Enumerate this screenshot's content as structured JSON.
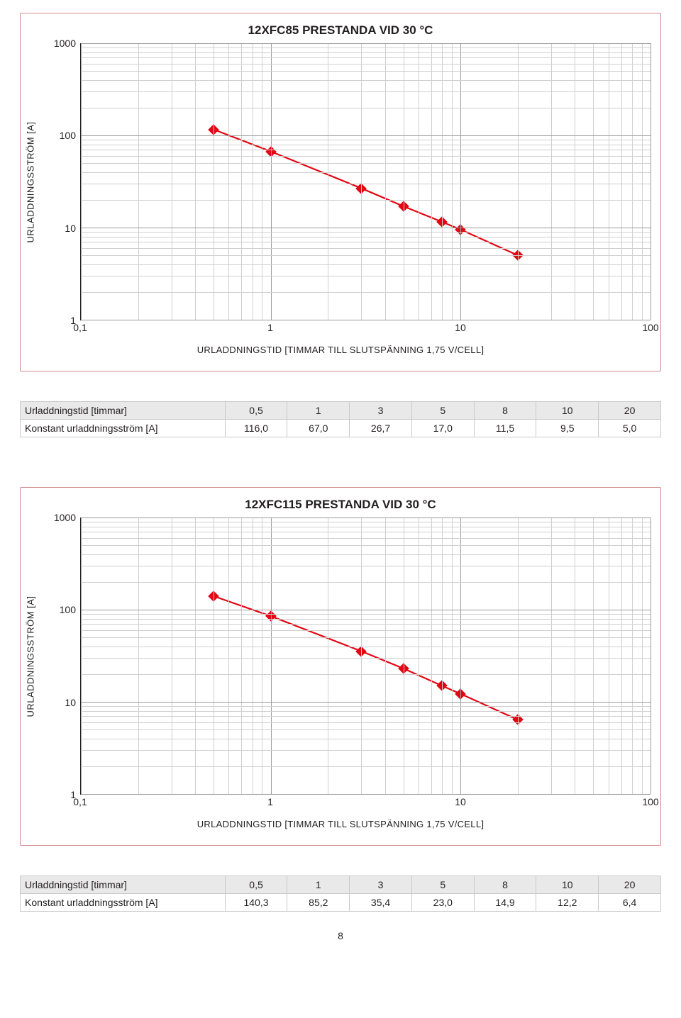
{
  "page_number": "8",
  "panel_border_color": "#d08a8a",
  "line_color": "#e30613",
  "grid_major_color": "#9b9b9b",
  "grid_minor_color": "#cfcfcf",
  "axis_color": "#231f20",
  "background_color": "#ffffff",
  "ylabel": "URLADDNINGSSTRÖM [A]",
  "xlabel": "URLADDNINGSTID [TIMMAR TILL SLUTSPÄNNING 1,75 V/CELL]",
  "yticks": [
    "1000",
    "100",
    "10",
    "1"
  ],
  "xticks": [
    "0,1",
    "1",
    "10",
    "100"
  ],
  "charts": [
    {
      "title": "12XFC85 PRESTANDA VID 30 °C",
      "type": "line-loglog",
      "xlim_log10": [
        -1,
        2
      ],
      "ylim_log10": [
        0,
        3
      ],
      "points": [
        {
          "x": 0.5,
          "y": 116.0
        },
        {
          "x": 1,
          "y": 67.0
        },
        {
          "x": 3,
          "y": 26.7
        },
        {
          "x": 5,
          "y": 17.0
        },
        {
          "x": 8,
          "y": 11.5
        },
        {
          "x": 10,
          "y": 9.5
        },
        {
          "x": 20,
          "y": 5.0
        }
      ],
      "table": {
        "row_label_1": "Urladdningstid [timmar]",
        "row_label_2": "Konstant urladdningsström [A]",
        "hours": [
          "0,5",
          "1",
          "3",
          "5",
          "8",
          "10",
          "20"
        ],
        "values": [
          "116,0",
          "67,0",
          "26,7",
          "17,0",
          "11,5",
          "9,5",
          "5,0"
        ]
      }
    },
    {
      "title": "12XFC115 PRESTANDA VID 30 °C",
      "type": "line-loglog",
      "xlim_log10": [
        -1,
        2
      ],
      "ylim_log10": [
        0,
        3
      ],
      "points": [
        {
          "x": 0.5,
          "y": 140.3
        },
        {
          "x": 1,
          "y": 85.2
        },
        {
          "x": 3,
          "y": 35.4
        },
        {
          "x": 5,
          "y": 23.0
        },
        {
          "x": 8,
          "y": 14.9
        },
        {
          "x": 10,
          "y": 12.2
        },
        {
          "x": 20,
          "y": 6.4
        }
      ],
      "table": {
        "row_label_1": "Urladdningstid [timmar]",
        "row_label_2": "Konstant urladdningsström [A]",
        "hours": [
          "0,5",
          "1",
          "3",
          "5",
          "8",
          "10",
          "20"
        ],
        "values": [
          "140,3",
          "85,2",
          "35,4",
          "23,0",
          "14,9",
          "12,2",
          "6,4"
        ]
      }
    }
  ]
}
